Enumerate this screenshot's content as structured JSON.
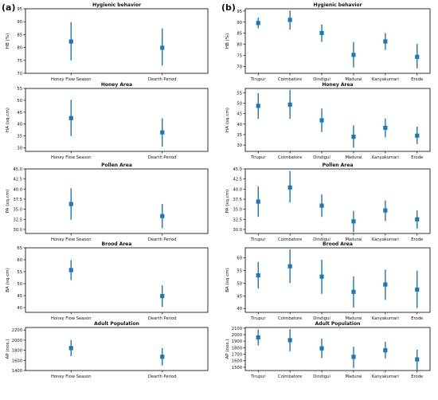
{
  "panels": [
    {
      "label": "(a)"
    },
    {
      "label": "(b)"
    }
  ],
  "colors": {
    "series": "#1f77b4",
    "axis": "#000000"
  },
  "chart_data": [
    {
      "type": "scatter",
      "panel": "a",
      "title": "Hygienic behavior",
      "xlabel": "",
      "ylabel": "HB (%)",
      "categories": [
        "Honey Flow Season",
        "Dearth Period"
      ],
      "values": [
        82.3,
        79.9
      ],
      "err_low": [
        75.0,
        73.0
      ],
      "err_high": [
        89.8,
        87.4
      ],
      "ylim": [
        70,
        95
      ],
      "yticks": [
        70,
        75,
        80,
        85,
        90,
        95
      ]
    },
    {
      "type": "scatter",
      "panel": "a",
      "title": "Honey Area",
      "xlabel": "",
      "ylabel": "HA (sq.cm)",
      "categories": [
        "Honey Flow Season",
        "Dearth Period"
      ],
      "values": [
        42.5,
        36.5
      ],
      "err_low": [
        35.0,
        30.5
      ],
      "err_high": [
        50.2,
        42.4
      ],
      "ylim": [
        28.5,
        55
      ],
      "yticks": [
        30,
        35,
        40,
        45,
        50,
        55
      ]
    },
    {
      "type": "scatter",
      "panel": "a",
      "title": "Pollen Area",
      "xlabel": "",
      "ylabel": "PA (sq.cm)",
      "categories": [
        "Honey Flow Season",
        "Dearth Period"
      ],
      "values": [
        36.3,
        33.3
      ],
      "err_low": [
        32.4,
        30.3
      ],
      "err_high": [
        40.2,
        36.3
      ],
      "ylim": [
        29,
        45
      ],
      "yticks": [
        30.0,
        32.5,
        35.0,
        37.5,
        40.0,
        42.5,
        45.0
      ]
    },
    {
      "type": "scatter",
      "panel": "a",
      "title": "Brood Area",
      "xlabel": "",
      "ylabel": "BA (sq.cm)",
      "categories": [
        "Honey Flow Season",
        "Dearth Period"
      ],
      "values": [
        55.7,
        44.8
      ],
      "err_low": [
        51.5,
        40.3
      ],
      "err_high": [
        59.9,
        49.3
      ],
      "ylim": [
        38,
        65
      ],
      "yticks": [
        40,
        45,
        50,
        55,
        60,
        65
      ]
    },
    {
      "type": "scatter",
      "panel": "a",
      "title": "Adult Population",
      "xlabel": "",
      "ylabel": "AP (nos.)",
      "categories": [
        "Honey Flow Season",
        "Dearth Period"
      ],
      "values": [
        1843,
        1672
      ],
      "err_low": [
        1683,
        1500
      ],
      "err_high": [
        2003,
        1844
      ],
      "ylim": [
        1400,
        2250
      ],
      "yticks": [
        1400,
        1600,
        1800,
        2000,
        2200
      ]
    },
    {
      "type": "scatter",
      "panel": "b",
      "title": "Hygienic behavior",
      "xlabel": "",
      "ylabel": "HB (%)",
      "categories": [
        "Tirupur",
        "Coimbatore",
        "Dindigul",
        "Madurai",
        "Kanyakumari",
        "Erode"
      ],
      "values": [
        89.6,
        91.0,
        85.1,
        75.3,
        81.3,
        74.4
      ],
      "err_low": [
        87.2,
        86.6,
        81.1,
        69.6,
        77.5,
        69.2
      ],
      "err_high": [
        92.0,
        95.2,
        88.9,
        81.1,
        85.1,
        80.2
      ],
      "ylim": [
        67,
        96
      ],
      "yticks": [
        70,
        75,
        80,
        85,
        90,
        95
      ]
    },
    {
      "type": "scatter",
      "panel": "b",
      "title": "Honey Area",
      "xlabel": "",
      "ylabel": "HA (sq.cm)",
      "categories": [
        "Tirupur",
        "Coimbatore",
        "Dindigul",
        "Madurai",
        "Kanyakumari",
        "Erode"
      ],
      "values": [
        48.7,
        49.3,
        41.8,
        34.0,
        38.2,
        34.5
      ],
      "err_low": [
        42.5,
        42.5,
        36.2,
        28.7,
        33.7,
        30.5
      ],
      "err_high": [
        54.8,
        56.3,
        47.4,
        39.4,
        42.7,
        38.8
      ],
      "ylim": [
        27,
        57
      ],
      "yticks": [
        30,
        35,
        40,
        45,
        50,
        55
      ]
    },
    {
      "type": "scatter",
      "panel": "b",
      "title": "Pollen Area",
      "xlabel": "",
      "ylabel": "PA (sq.cm)",
      "categories": [
        "Tirupur",
        "Coimbatore",
        "Dindigul",
        "Madurai",
        "Kanyakumari",
        "Erode"
      ],
      "values": [
        36.9,
        40.4,
        35.9,
        32.0,
        34.7,
        32.5
      ],
      "err_low": [
        33.1,
        36.7,
        33.1,
        29.3,
        32.1,
        30.2
      ],
      "err_high": [
        40.7,
        44.5,
        38.7,
        34.6,
        37.2,
        34.7
      ],
      "ylim": [
        29,
        45
      ],
      "yticks": [
        30.0,
        32.5,
        35.0,
        37.5,
        40.0,
        42.5,
        45.0
      ]
    },
    {
      "type": "scatter",
      "panel": "b",
      "title": "Brood Area",
      "xlabel": "",
      "ylabel": "BA (sq.cm)",
      "categories": [
        "Tirupur",
        "Coimbatore",
        "Dindigul",
        "Madurai",
        "Kanyakumari",
        "Erode"
      ],
      "values": [
        53.1,
        56.7,
        52.6,
        46.6,
        49.5,
        47.5
      ],
      "err_low": [
        47.9,
        50.1,
        45.8,
        40.4,
        43.4,
        40.2
      ],
      "err_high": [
        58.4,
        63.4,
        59.3,
        52.7,
        55.4,
        55.0
      ],
      "ylim": [
        38.5,
        64
      ],
      "yticks": [
        40,
        45,
        50,
        55,
        60
      ]
    },
    {
      "type": "scatter",
      "panel": "b",
      "title": "Adult Population",
      "xlabel": "",
      "ylabel": "AP (nos.)",
      "categories": [
        "Tirupur",
        "Coimbatore",
        "Dindigul",
        "Madurai",
        "Kanyakumari",
        "Erode"
      ],
      "values": [
        1958,
        1915,
        1790,
        1660,
        1760,
        1620
      ],
      "err_low": [
        1835,
        1745,
        1640,
        1490,
        1635,
        1460
      ],
      "err_high": [
        2080,
        2085,
        1940,
        1815,
        1890,
        1770
      ],
      "ylim": [
        1450,
        2110
      ],
      "yticks": [
        1500,
        1600,
        1700,
        1800,
        1900,
        2000,
        2100
      ]
    }
  ]
}
